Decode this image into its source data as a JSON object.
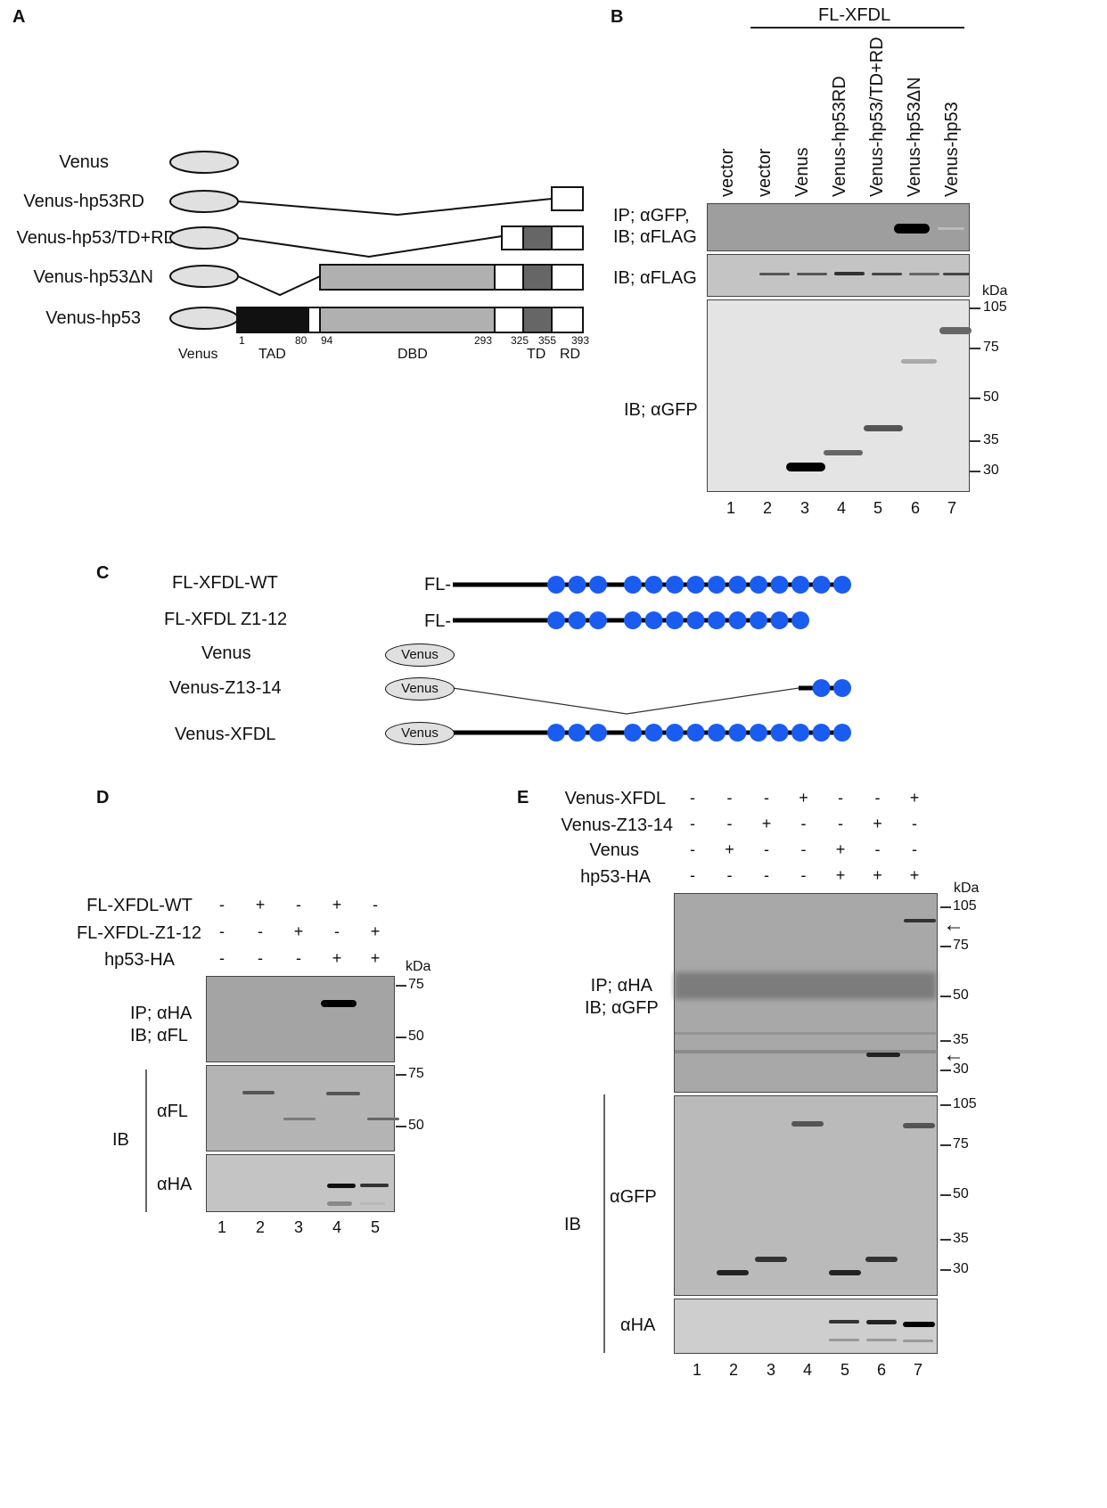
{
  "panels": {
    "A": {
      "letter": "A",
      "constructs": [
        "Venus",
        "Venus-hp53RD",
        "Venus-hp53/TD+RD",
        "Venus-hp53ΔN",
        "Venus-hp53"
      ],
      "positions": [
        "1",
        "80",
        "94",
        "293",
        "325",
        "355",
        "393"
      ],
      "domains": [
        "Venus",
        "TAD",
        "DBD",
        "TD",
        "RD"
      ],
      "colors": {
        "venus": "#e0e0e0",
        "tad": "#111111",
        "dbd": "#b0b0b0",
        "td": "#666666",
        "rd": "#ffffff"
      }
    },
    "B": {
      "letter": "B",
      "group_label": "FL-XFDL",
      "lane_labels": [
        "vector",
        "vector",
        "Venus",
        "Venus-hp53RD",
        "Venus-hp53/TD+RD",
        "Venus-hp53ΔN",
        "Venus-hp53"
      ],
      "blot_labels": [
        "IP; αGFP,",
        "IB; αFLAG",
        "IB; αFLAG",
        "IB; αGFP"
      ],
      "kda_unit": "kDa",
      "kda_markers": [
        "105",
        "75",
        "50",
        "35",
        "30"
      ],
      "lane_numbers": [
        "1",
        "2",
        "3",
        "4",
        "5",
        "6",
        "7"
      ]
    },
    "C": {
      "letter": "C",
      "constructs": [
        "FL-XFDL-WT",
        "FL-XFDL Z1-12",
        "Venus",
        "Venus-Z13-14",
        "Venus-XFDL"
      ],
      "fl_tag": "FL-",
      "venus_tag": "Venus",
      "zinc_finger_counts": [
        14,
        12,
        0,
        2,
        14
      ],
      "zinc_finger_color": "#1a5cf0"
    },
    "D": {
      "letter": "D",
      "conditions": [
        {
          "name": "FL-XFDL-WT",
          "signs": [
            "-",
            "+",
            "-",
            "+",
            "-"
          ]
        },
        {
          "name": "FL-XFDL-Z1-12",
          "signs": [
            "-",
            "-",
            "+",
            "-",
            "+"
          ]
        },
        {
          "name": "hp53-HA",
          "signs": [
            "-",
            "-",
            "-",
            "+",
            "+"
          ]
        }
      ],
      "blot_labels": [
        "IP; αHA",
        "IB; αFL",
        "αFL",
        "αHA"
      ],
      "ib_group": "IB",
      "kda_unit": "kDa",
      "kda_markers_top": [
        "75",
        "50"
      ],
      "kda_markers_mid": [
        "75",
        "50"
      ],
      "lane_numbers": [
        "1",
        "2",
        "3",
        "4",
        "5"
      ]
    },
    "E": {
      "letter": "E",
      "conditions": [
        {
          "name": "Venus-XFDL",
          "signs": [
            "-",
            "-",
            "-",
            "+",
            "-",
            "-",
            "+"
          ]
        },
        {
          "name": "Venus-Z13-14",
          "signs": [
            "-",
            "-",
            "+",
            "-",
            "-",
            "+",
            "-"
          ]
        },
        {
          "name": "Venus",
          "signs": [
            "-",
            "+",
            "-",
            "-",
            "+",
            "-",
            "-"
          ]
        },
        {
          "name": "hp53-HA",
          "signs": [
            "-",
            "-",
            "-",
            "-",
            "+",
            "+",
            "+"
          ]
        }
      ],
      "blot_labels": [
        "IP; αHA",
        "IB; αGFP",
        "αGFP",
        "αHA"
      ],
      "ib_group": "IB",
      "kda_unit": "kDa",
      "kda_markers_top": [
        "105",
        "75",
        "50",
        "35",
        "30"
      ],
      "kda_markers_mid": [
        "105",
        "75",
        "50",
        "35",
        "30"
      ],
      "lane_numbers": [
        "1",
        "2",
        "3",
        "4",
        "5",
        "6",
        "7"
      ]
    }
  }
}
